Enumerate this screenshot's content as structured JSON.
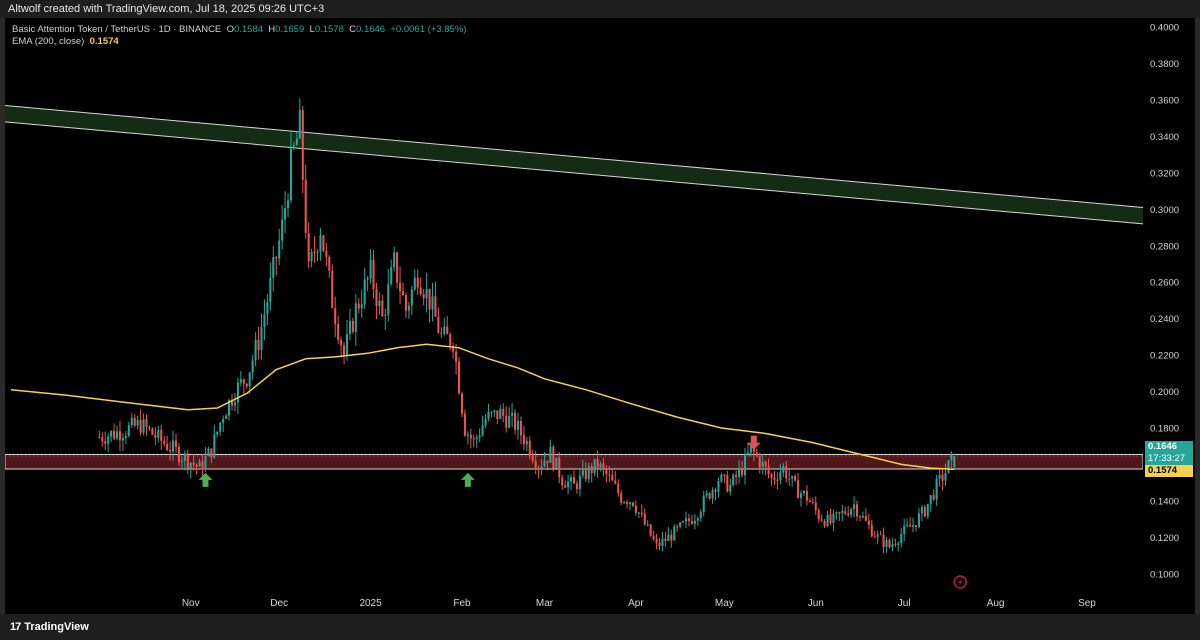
{
  "header": {
    "caption": "Altwolf created with TradingView.com, Jul 18, 2025 09:26 UTC+3"
  },
  "legend": {
    "symbol": "Basic Attention Token / TetherUS · 1D · BINANCE",
    "o_label": "O",
    "o": "0.1584",
    "h_label": "H",
    "h": "0.1659",
    "l_label": "L",
    "l": "0.1578",
    "c_label": "C",
    "c": "0.1646",
    "change": "+0.0061 (+3.85%)",
    "ema_label": "EMA (200, close)",
    "ema": "0.1574"
  },
  "tags": {
    "last_price": "0.1646",
    "countdown": "17:33:27",
    "ema_price": "0.1574"
  },
  "footer": {
    "brand": "TradingView"
  },
  "colors": {
    "up": "#26a69a",
    "down": "#ef5350",
    "ema": "#f5d24b",
    "resistance_band": "#163416",
    "support_band": "#5a1a1e",
    "arrow_up": "#4caf50",
    "arrow_down": "#e05252",
    "background": "#000000"
  },
  "chart_data": {
    "type": "candlestick",
    "symbol": "Basic Attention Token / TetherUS",
    "interval": "1D",
    "exchange": "BINANCE",
    "ylim": [
      0.09,
      0.405
    ],
    "y_ticks": [
      "0.4000",
      "0.3800",
      "0.3600",
      "0.3400",
      "0.3200",
      "0.3000",
      "0.2800",
      "0.2600",
      "0.2400",
      "0.2200",
      "0.2000",
      "0.1800",
      "0.1600",
      "0.1400",
      "0.1200",
      "0.1000"
    ],
    "x_ticks": [
      {
        "label": "Nov",
        "date": "2024-11-01"
      },
      {
        "label": "Dec",
        "date": "2024-12-01"
      },
      {
        "label": "2025",
        "date": "2025-01-01"
      },
      {
        "label": "Feb",
        "date": "2025-02-01"
      },
      {
        "label": "Mar",
        "date": "2025-03-01"
      },
      {
        "label": "Apr",
        "date": "2025-04-01"
      },
      {
        "label": "May",
        "date": "2025-05-01"
      },
      {
        "label": "Jun",
        "date": "2025-06-01"
      },
      {
        "label": "Jul",
        "date": "2025-07-01"
      },
      {
        "label": "Aug",
        "date": "2025-08-01"
      },
      {
        "label": "Sep",
        "date": "2025-09-01"
      }
    ],
    "xlim": [
      "2024-08-30",
      "2025-09-20"
    ],
    "price_path": [
      [
        "2024-10-01",
        0.175
      ],
      [
        "2024-10-08",
        0.178
      ],
      [
        "2024-10-15",
        0.182
      ],
      [
        "2024-10-22",
        0.173
      ],
      [
        "2024-10-28",
        0.166
      ],
      [
        "2024-11-04",
        0.158
      ],
      [
        "2024-11-08",
        0.168
      ],
      [
        "2024-11-12",
        0.188
      ],
      [
        "2024-11-16",
        0.2
      ],
      [
        "2024-11-20",
        0.208
      ],
      [
        "2024-11-24",
        0.228
      ],
      [
        "2024-11-28",
        0.258
      ],
      [
        "2024-12-02",
        0.29
      ],
      [
        "2024-12-05",
        0.325
      ],
      [
        "2024-12-08",
        0.345
      ],
      [
        "2024-12-11",
        0.265
      ],
      [
        "2024-12-15",
        0.29
      ],
      [
        "2024-12-19",
        0.25
      ],
      [
        "2024-12-23",
        0.22
      ],
      [
        "2024-12-27",
        0.245
      ],
      [
        "2025-01-01",
        0.265
      ],
      [
        "2025-01-05",
        0.24
      ],
      [
        "2025-01-09",
        0.27
      ],
      [
        "2025-01-13",
        0.245
      ],
      [
        "2025-01-17",
        0.265
      ],
      [
        "2025-01-21",
        0.25
      ],
      [
        "2025-01-25",
        0.23
      ],
      [
        "2025-01-29",
        0.228
      ],
      [
        "2025-02-02",
        0.18
      ],
      [
        "2025-02-05",
        0.172
      ],
      [
        "2025-02-09",
        0.185
      ],
      [
        "2025-02-14",
        0.188
      ],
      [
        "2025-02-19",
        0.182
      ],
      [
        "2025-02-23",
        0.172
      ],
      [
        "2025-02-27",
        0.16
      ],
      [
        "2025-03-03",
        0.166
      ],
      [
        "2025-03-07",
        0.152
      ],
      [
        "2025-03-11",
        0.148
      ],
      [
        "2025-03-15",
        0.155
      ],
      [
        "2025-03-19",
        0.16
      ],
      [
        "2025-03-23",
        0.152
      ],
      [
        "2025-03-27",
        0.142
      ],
      [
        "2025-03-31",
        0.14
      ],
      [
        "2025-04-04",
        0.127
      ],
      [
        "2025-04-08",
        0.115
      ],
      [
        "2025-04-12",
        0.12
      ],
      [
        "2025-04-16",
        0.125
      ],
      [
        "2025-04-21",
        0.132
      ],
      [
        "2025-04-25",
        0.142
      ],
      [
        "2025-04-29",
        0.152
      ],
      [
        "2025-05-03",
        0.148
      ],
      [
        "2025-05-07",
        0.158
      ],
      [
        "2025-05-10",
        0.168
      ],
      [
        "2025-05-13",
        0.162
      ],
      [
        "2025-05-17",
        0.152
      ],
      [
        "2025-05-21",
        0.158
      ],
      [
        "2025-05-25",
        0.147
      ],
      [
        "2025-05-29",
        0.142
      ],
      [
        "2025-06-02",
        0.132
      ],
      [
        "2025-06-06",
        0.128
      ],
      [
        "2025-06-10",
        0.133
      ],
      [
        "2025-06-14",
        0.138
      ],
      [
        "2025-06-18",
        0.128
      ],
      [
        "2025-06-22",
        0.12
      ],
      [
        "2025-06-26",
        0.115
      ],
      [
        "2025-06-30",
        0.122
      ],
      [
        "2025-07-04",
        0.127
      ],
      [
        "2025-07-08",
        0.135
      ],
      [
        "2025-07-12",
        0.148
      ],
      [
        "2025-07-15",
        0.156
      ],
      [
        "2025-07-18",
        0.1646
      ]
    ],
    "ema200": [
      [
        "2024-09-01",
        0.201
      ],
      [
        "2024-09-20",
        0.198
      ],
      [
        "2024-10-10",
        0.194
      ],
      [
        "2024-10-31",
        0.19
      ],
      [
        "2024-11-10",
        0.191
      ],
      [
        "2024-11-20",
        0.199
      ],
      [
        "2024-11-30",
        0.212
      ],
      [
        "2024-12-10",
        0.218
      ],
      [
        "2024-12-20",
        0.219
      ],
      [
        "2024-12-31",
        0.221
      ],
      [
        "2025-01-10",
        0.224
      ],
      [
        "2025-01-20",
        0.226
      ],
      [
        "2025-01-31",
        0.224
      ],
      [
        "2025-02-10",
        0.218
      ],
      [
        "2025-02-20",
        0.213
      ],
      [
        "2025-03-01",
        0.207
      ],
      [
        "2025-03-15",
        0.201
      ],
      [
        "2025-03-31",
        0.193
      ],
      [
        "2025-04-15",
        0.186
      ],
      [
        "2025-04-30",
        0.18
      ],
      [
        "2025-05-15",
        0.177
      ],
      [
        "2025-05-31",
        0.172
      ],
      [
        "2025-06-15",
        0.166
      ],
      [
        "2025-06-30",
        0.16
      ],
      [
        "2025-07-10",
        0.158
      ],
      [
        "2025-07-18",
        0.1574
      ]
    ],
    "resistance_channel": {
      "upper": [
        [
          "2024-08-30",
          0.357
        ],
        [
          "2025-09-20",
          0.301
        ]
      ],
      "lower": [
        [
          "2024-08-30",
          0.348
        ],
        [
          "2025-09-20",
          0.292
        ]
      ]
    },
    "support_zone": [
      0.1575,
      0.1655
    ],
    "markers": [
      {
        "date": "2024-11-06",
        "type": "arrow-up",
        "price": 0.1515
      },
      {
        "date": "2025-02-03",
        "type": "arrow-up",
        "price": 0.1515
      },
      {
        "date": "2025-05-11",
        "type": "arrow-down",
        "price": 0.172
      }
    ],
    "grid": false,
    "legend_position": "top-left"
  }
}
